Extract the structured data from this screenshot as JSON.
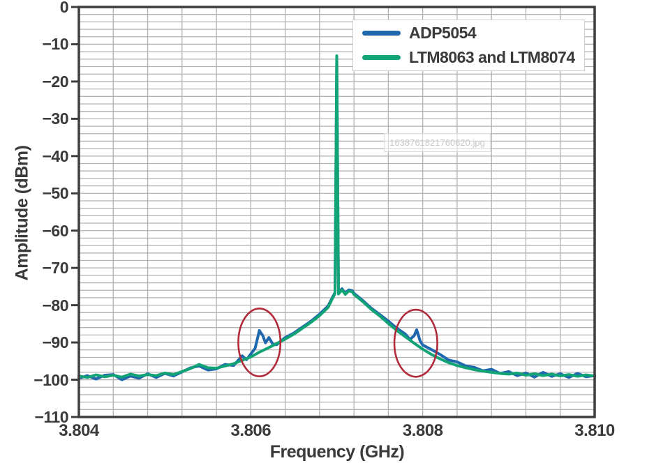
{
  "watermark": {
    "text": "1638761821760620.jpg"
  },
  "chart_data": {
    "type": "line",
    "title": "",
    "xlabel": "Frequency (GHz)",
    "ylabel": "Amplitude (dBm)",
    "xlim": [
      3.804,
      3.81
    ],
    "ylim": [
      -110,
      0
    ],
    "grid": true,
    "x_minor_step_ghz": 0.0004,
    "y_minor_step_db": 2,
    "x_major_ticks": [
      3.804,
      3.806,
      3.808,
      3.81
    ],
    "x_tick_labels": [
      "3.804",
      "3.806",
      "3.808",
      "3.810"
    ],
    "y_major_ticks": [
      0,
      -10,
      -20,
      -30,
      -40,
      -50,
      -60,
      -70,
      -80,
      -90,
      -100,
      -110
    ],
    "y_tick_labels": [
      "0",
      "−10",
      "−20",
      "−30",
      "−40",
      "−50",
      "−60",
      "−70",
      "−80",
      "−90",
      "−100",
      "−110"
    ],
    "legend_position": "top-right",
    "colors": {
      "grid": "#b3b0b2",
      "border": "#3e3d3f",
      "axis_text": "#3a393b",
      "ellipse": "#b12a3a",
      "watermark_text": "#c8c8c8"
    },
    "annotations": {
      "ellipses": [
        {
          "label": "left-spur-circle",
          "cx_ghz": 3.8061,
          "cy_dbm": -90.0,
          "rx_ghz": 0.000245,
          "ry_db": 9.1
        },
        {
          "label": "right-spur-circle",
          "cx_ghz": 3.80792,
          "cy_dbm": -90.2,
          "rx_ghz": 0.00025,
          "ry_db": 9.0
        }
      ]
    },
    "series": [
      {
        "name": "ADP5054",
        "color": "#1f68ae",
        "points": [
          [
            3.804,
            -99.6
          ],
          [
            3.8041,
            -98.9
          ],
          [
            3.8042,
            -99.8
          ],
          [
            3.8043,
            -98.8
          ],
          [
            3.8044,
            -98.6
          ],
          [
            3.8045,
            -100.0
          ],
          [
            3.8046,
            -99.0
          ],
          [
            3.8047,
            -99.6
          ],
          [
            3.8048,
            -98.4
          ],
          [
            3.8049,
            -99.4
          ],
          [
            3.805,
            -98.3
          ],
          [
            3.8051,
            -99.0
          ],
          [
            3.8052,
            -97.9
          ],
          [
            3.8053,
            -96.8
          ],
          [
            3.8054,
            -96.3
          ],
          [
            3.8055,
            -97.4
          ],
          [
            3.8056,
            -97.1
          ],
          [
            3.8057,
            -95.9
          ],
          [
            3.8058,
            -96.2
          ],
          [
            3.8059,
            -93.6
          ],
          [
            3.80595,
            -94.6
          ],
          [
            3.806,
            -93.1
          ],
          [
            3.80605,
            -91.6
          ],
          [
            3.8061,
            -86.8
          ],
          [
            3.80614,
            -88.2
          ],
          [
            3.80617,
            -90.1
          ],
          [
            3.80621,
            -88.7
          ],
          [
            3.80626,
            -90.6
          ],
          [
            3.8063,
            -90.6
          ],
          [
            3.8064,
            -88.7
          ],
          [
            3.8065,
            -87.5
          ],
          [
            3.8066,
            -85.9
          ],
          [
            3.8067,
            -84.3
          ],
          [
            3.8068,
            -82.4
          ],
          [
            3.8069,
            -80.2
          ],
          [
            3.80695,
            -77.9
          ],
          [
            3.80698,
            -76.6
          ],
          [
            3.807,
            -13.3
          ],
          [
            3.80702,
            -76.7
          ],
          [
            3.80706,
            -75.6
          ],
          [
            3.8071,
            -76.8
          ],
          [
            3.80714,
            -75.9
          ],
          [
            3.80718,
            -76.1
          ],
          [
            3.8072,
            -76.8
          ],
          [
            3.8073,
            -78.7
          ],
          [
            3.8074,
            -80.8
          ],
          [
            3.8075,
            -82.5
          ],
          [
            3.8076,
            -84.3
          ],
          [
            3.8077,
            -86.2
          ],
          [
            3.8078,
            -87.8
          ],
          [
            3.80785,
            -89.2
          ],
          [
            3.8079,
            -88.2
          ],
          [
            3.80793,
            -86.6
          ],
          [
            3.80797,
            -89.6
          ],
          [
            3.808,
            -90.7
          ],
          [
            3.8081,
            -91.9
          ],
          [
            3.8082,
            -93.2
          ],
          [
            3.8083,
            -94.7
          ],
          [
            3.8084,
            -95.2
          ],
          [
            3.8085,
            -96.3
          ],
          [
            3.8086,
            -96.7
          ],
          [
            3.8087,
            -97.6
          ],
          [
            3.8088,
            -97.2
          ],
          [
            3.8089,
            -98.3
          ],
          [
            3.809,
            -97.8
          ],
          [
            3.8091,
            -98.9
          ],
          [
            3.8092,
            -98.2
          ],
          [
            3.8093,
            -99.3
          ],
          [
            3.8094,
            -98.0
          ],
          [
            3.8095,
            -99.1
          ],
          [
            3.8096,
            -98.4
          ],
          [
            3.8097,
            -99.4
          ],
          [
            3.8098,
            -98.3
          ],
          [
            3.8099,
            -99.2
          ],
          [
            3.81,
            -98.9
          ]
        ]
      },
      {
        "name": "LTM8063 and LTM8074",
        "color": "#12a376",
        "points": [
          [
            3.804,
            -99.0
          ],
          [
            3.8041,
            -99.4
          ],
          [
            3.8042,
            -98.7
          ],
          [
            3.8043,
            -99.2
          ],
          [
            3.8044,
            -98.8
          ],
          [
            3.8045,
            -99.3
          ],
          [
            3.8046,
            -98.5
          ],
          [
            3.8047,
            -99.0
          ],
          [
            3.8048,
            -98.6
          ],
          [
            3.8049,
            -98.9
          ],
          [
            3.805,
            -98.2
          ],
          [
            3.8051,
            -98.6
          ],
          [
            3.8052,
            -97.8
          ],
          [
            3.8053,
            -97.0
          ],
          [
            3.8054,
            -95.9
          ],
          [
            3.8055,
            -96.8
          ],
          [
            3.8056,
            -96.9
          ],
          [
            3.8057,
            -96.3
          ],
          [
            3.8058,
            -95.7
          ],
          [
            3.8059,
            -94.8
          ],
          [
            3.806,
            -93.9
          ],
          [
            3.8061,
            -92.6
          ],
          [
            3.8062,
            -91.5
          ],
          [
            3.8063,
            -90.3
          ],
          [
            3.8064,
            -89.1
          ],
          [
            3.8065,
            -87.8
          ],
          [
            3.8066,
            -86.2
          ],
          [
            3.8067,
            -84.6
          ],
          [
            3.8068,
            -82.8
          ],
          [
            3.8069,
            -80.6
          ],
          [
            3.80695,
            -78.2
          ],
          [
            3.80698,
            -76.9
          ],
          [
            3.807,
            -13.1
          ],
          [
            3.80702,
            -77.0
          ],
          [
            3.80706,
            -75.9
          ],
          [
            3.8071,
            -77.1
          ],
          [
            3.80714,
            -76.2
          ],
          [
            3.80718,
            -76.4
          ],
          [
            3.8072,
            -77.1
          ],
          [
            3.8073,
            -79.0
          ],
          [
            3.8074,
            -81.1
          ],
          [
            3.8075,
            -82.9
          ],
          [
            3.8076,
            -84.9
          ],
          [
            3.8077,
            -86.8
          ],
          [
            3.8078,
            -88.5
          ],
          [
            3.8079,
            -90.2
          ],
          [
            3.808,
            -91.8
          ],
          [
            3.8081,
            -93.2
          ],
          [
            3.8082,
            -94.4
          ],
          [
            3.8083,
            -95.4
          ],
          [
            3.8084,
            -96.2
          ],
          [
            3.8085,
            -96.8
          ],
          [
            3.8086,
            -97.3
          ],
          [
            3.8087,
            -97.7
          ],
          [
            3.8088,
            -98.0
          ],
          [
            3.8089,
            -98.3
          ],
          [
            3.809,
            -98.5
          ],
          [
            3.8091,
            -98.2
          ],
          [
            3.8092,
            -98.8
          ],
          [
            3.8093,
            -98.4
          ],
          [
            3.8094,
            -98.9
          ],
          [
            3.8095,
            -98.5
          ],
          [
            3.8096,
            -99.0
          ],
          [
            3.8097,
            -98.6
          ],
          [
            3.8098,
            -99.1
          ],
          [
            3.8099,
            -98.7
          ],
          [
            3.81,
            -99.0
          ]
        ]
      }
    ]
  }
}
